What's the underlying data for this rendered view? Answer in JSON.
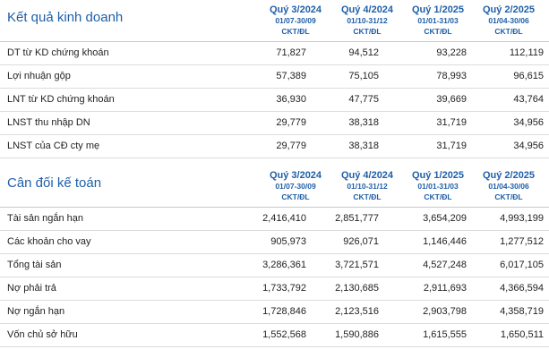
{
  "business": {
    "title": "Kết quả kinh doanh",
    "periods": [
      {
        "quarter": "Quý 3/2024",
        "range": "01/07-30/09",
        "audit": "CKT/ĐL"
      },
      {
        "quarter": "Quý 4/2024",
        "range": "01/10-31/12",
        "audit": "CKT/ĐL"
      },
      {
        "quarter": "Quý 1/2025",
        "range": "01/01-31/03",
        "audit": "CKT/ĐL"
      },
      {
        "quarter": "Quý 2/2025",
        "range": "01/04-30/06",
        "audit": "CKT/ĐL"
      }
    ],
    "rows": [
      {
        "label": "DT từ KD chứng khoán",
        "values": [
          "71,827",
          "94,512",
          "93,228",
          "112,119"
        ]
      },
      {
        "label": "Lợi nhuận gộp",
        "values": [
          "57,389",
          "75,105",
          "78,993",
          "96,615"
        ]
      },
      {
        "label": "LNT từ KD chứng khoán",
        "values": [
          "36,930",
          "47,775",
          "39,669",
          "43,764"
        ]
      },
      {
        "label": "LNST thu nhập DN",
        "values": [
          "29,779",
          "38,318",
          "31,719",
          "34,956"
        ]
      },
      {
        "label": "LNST của CĐ cty mẹ",
        "values": [
          "29,779",
          "38,318",
          "31,719",
          "34,956"
        ]
      }
    ]
  },
  "balance": {
    "title": "Cân đối kế toán",
    "periods": [
      {
        "quarter": "Quý 3/2024",
        "range": "01/07-30/09",
        "audit": "CKT/ĐL"
      },
      {
        "quarter": "Quý 4/2024",
        "range": "01/10-31/12",
        "audit": "CKT/ĐL"
      },
      {
        "quarter": "Quý 1/2025",
        "range": "01/01-31/03",
        "audit": "CKT/ĐL"
      },
      {
        "quarter": "Quý 2/2025",
        "range": "01/04-30/06",
        "audit": "CKT/ĐL"
      }
    ],
    "rows": [
      {
        "label": "Tài sản ngắn hạn",
        "values": [
          "2,416,410",
          "2,851,777",
          "3,654,209",
          "4,993,199"
        ]
      },
      {
        "label": "Các khoản cho vay",
        "values": [
          "905,973",
          "926,071",
          "1,146,446",
          "1,277,512"
        ]
      },
      {
        "label": "Tổng tài sản",
        "values": [
          "3,286,361",
          "3,721,571",
          "4,527,248",
          "6,017,105"
        ]
      },
      {
        "label": "Nợ phải trả",
        "values": [
          "1,733,792",
          "2,130,685",
          "2,911,693",
          "4,366,594"
        ]
      },
      {
        "label": "Nợ ngắn hạn",
        "values": [
          "1,728,846",
          "2,123,516",
          "2,903,798",
          "4,358,719"
        ]
      },
      {
        "label": "Vốn chủ sở hữu",
        "values": [
          "1,552,568",
          "1,590,886",
          "1,615,555",
          "1,650,511"
        ]
      }
    ]
  }
}
